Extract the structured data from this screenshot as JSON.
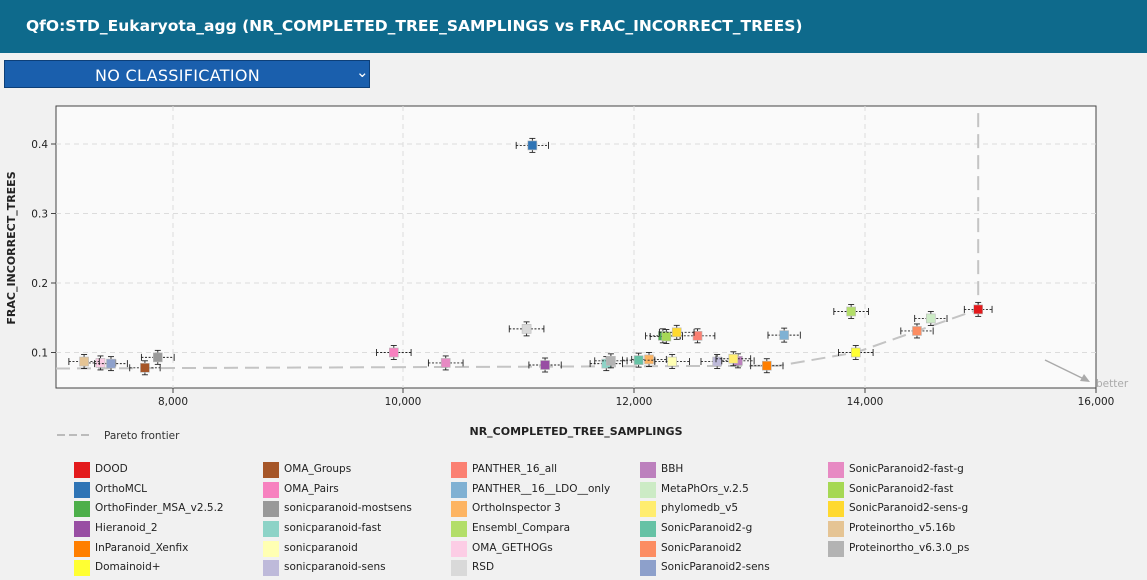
{
  "header": {
    "title": "QfO:STD_Eukaryota_agg (NR_COMPLETED_TREE_SAMPLINGS vs FRAC_INCORRECT_TREES)"
  },
  "dropdown": {
    "selected": "NO CLASSIFICATION",
    "caret_icon": "chevron-down-icon"
  },
  "pareto": {
    "label": "Pareto frontier",
    "better": "better"
  },
  "chart_data": {
    "type": "scatter",
    "title": "",
    "xlabel": "NR_COMPLETED_TREE_SAMPLINGS",
    "ylabel": "FRAC_INCORRECT_TREES",
    "xlim": [
      7000,
      16000
    ],
    "ylim": [
      0.05,
      0.45
    ],
    "xticks": [
      8000,
      10000,
      12000,
      14000,
      16000
    ],
    "xtick_labels": [
      "8,000",
      "10,000",
      "12,000",
      "14,000",
      "16,000"
    ],
    "yticks": [
      0.1,
      0.2,
      0.3,
      0.4
    ],
    "ytick_labels": [
      "0.1",
      "0.2",
      "0.3",
      "0.4"
    ],
    "grid": true,
    "legend_position": "bottom",
    "points": [
      {
        "name": "DOOD",
        "x": 14980,
        "y": 0.162,
        "xerr": 120,
        "color": "#e31a1c"
      },
      {
        "name": "OrthoMCL",
        "x": 11120,
        "y": 0.398,
        "xerr": 140,
        "color": "#2f74b5"
      },
      {
        "name": "OrthoFinder_MSA_v2.5.2",
        "x": 12250,
        "y": 0.124,
        "xerr": 150,
        "color": "#4daf4a"
      },
      {
        "name": "Hieranoid_2",
        "x": 11230,
        "y": 0.082,
        "xerr": 140,
        "color": "#984ea3"
      },
      {
        "name": "InParanoid_Xenfix",
        "x": 13150,
        "y": 0.081,
        "xerr": 140,
        "color": "#ff7f00"
      },
      {
        "name": "Domainoid+",
        "x": 13920,
        "y": 0.1,
        "xerr": 150,
        "color": "#ffff33"
      },
      {
        "name": "OMA_Groups",
        "x": 7760,
        "y": 0.078,
        "xerr": 130,
        "color": "#a65628"
      },
      {
        "name": "OMA_Pairs",
        "x": 9920,
        "y": 0.1,
        "xerr": 150,
        "color": "#f781bf"
      },
      {
        "name": "sonicparanoid-mostsens",
        "x": 7870,
        "y": 0.093,
        "xerr": 140,
        "color": "#999999"
      },
      {
        "name": "sonicparanoid-fast",
        "x": 11760,
        "y": 0.084,
        "xerr": 140,
        "color": "#8dd3c7"
      },
      {
        "name": "sonicparanoid",
        "x": 12330,
        "y": 0.087,
        "xerr": 150,
        "color": "#ffffb3"
      },
      {
        "name": "sonicparanoid-sens",
        "x": 12720,
        "y": 0.087,
        "xerr": 140,
        "color": "#bebada"
      },
      {
        "name": "PANTHER_16_all",
        "x": 12550,
        "y": 0.124,
        "xerr": 150,
        "color": "#fb8072"
      },
      {
        "name": "PANTHER__16__LDO__only",
        "x": 13300,
        "y": 0.125,
        "xerr": 140,
        "color": "#80b1d3"
      },
      {
        "name": "OrthoInspector 3",
        "x": 12130,
        "y": 0.09,
        "xerr": 150,
        "color": "#fdb462"
      },
      {
        "name": "Ensembl_Compara",
        "x": 13880,
        "y": 0.159,
        "xerr": 150,
        "color": "#b3de69"
      },
      {
        "name": "OMA_GETHOGs",
        "x": 7380,
        "y": 0.085,
        "xerr": 130,
        "color": "#fccde5"
      },
      {
        "name": "RSD",
        "x": 11070,
        "y": 0.134,
        "xerr": 150,
        "color": "#d9d9d9"
      },
      {
        "name": "BBH",
        "x": 12900,
        "y": 0.088,
        "xerr": 140,
        "color": "#bc80bd"
      },
      {
        "name": "MetaPhOrs_v.2.5",
        "x": 14570,
        "y": 0.149,
        "xerr": 140,
        "color": "#ccebc5"
      },
      {
        "name": "phylomedb_v5",
        "x": 12860,
        "y": 0.091,
        "xerr": 150,
        "color": "#ffed6f"
      },
      {
        "name": "SonicParanoid2-g",
        "x": 12040,
        "y": 0.089,
        "xerr": 140,
        "color": "#66c2a5"
      },
      {
        "name": "SonicParanoid2",
        "x": 14450,
        "y": 0.131,
        "xerr": 140,
        "color": "#fc8d62"
      },
      {
        "name": "SonicParanoid2-sens",
        "x": 7470,
        "y": 0.084,
        "xerr": 140,
        "color": "#8da0cb"
      },
      {
        "name": "SonicParanoid2-fast-g",
        "x": 10370,
        "y": 0.085,
        "xerr": 150,
        "color": "#e78ac3"
      },
      {
        "name": "SonicParanoid2-fast",
        "x": 12280,
        "y": 0.123,
        "xerr": 140,
        "color": "#a6d854"
      },
      {
        "name": "SonicParanoid2-sens-g",
        "x": 12370,
        "y": 0.129,
        "xerr": 150,
        "color": "#ffd92f"
      },
      {
        "name": "Proteinortho_v5.16b",
        "x": 7240,
        "y": 0.087,
        "xerr": 130,
        "color": "#e5c494"
      },
      {
        "name": "Proteinortho_v6.3.0_ps",
        "x": 11800,
        "y": 0.088,
        "xerr": 140,
        "color": "#b3b3b3"
      }
    ],
    "pareto_frontier": [
      [
        7000,
        0.077
      ],
      [
        13250,
        0.081
      ],
      [
        13920,
        0.1
      ],
      [
        14980,
        0.162
      ],
      [
        14980,
        0.45
      ]
    ]
  }
}
